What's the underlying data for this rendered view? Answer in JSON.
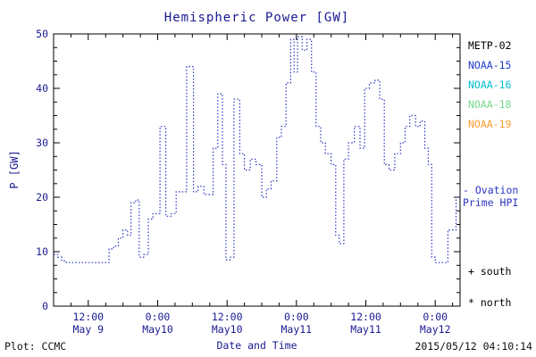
{
  "title": "Hemispheric Power [GW]",
  "footer": {
    "plot_credit": "Plot: CCMC",
    "timestamp": "2015/05/12 04:10:14"
  },
  "legend": {
    "satellites": [
      {
        "label": "METP-02",
        "color": "#000000"
      },
      {
        "label": "NOAA-15",
        "color": "#1f3bd0"
      },
      {
        "label": "NOAA-16",
        "color": "#00bcd0"
      },
      {
        "label": "NOAA-18",
        "color": "#74d98c"
      },
      {
        "label": "NOAA-19",
        "color": "#ff9d33"
      }
    ],
    "model_line1": "- Ovation",
    "model_line2": "Prime HPI",
    "south_label": "+ south",
    "north_label": "* north"
  },
  "chart_data": {
    "type": "line",
    "style": "dotted-step",
    "title": "Hemispheric Power [GW]",
    "xlabel": "Date and Time",
    "ylabel": "P [GW]",
    "ylim": [
      0,
      50
    ],
    "yticks": [
      0,
      10,
      20,
      30,
      40,
      50
    ],
    "xlim_hours": [
      6,
      76.3
    ],
    "xticks": [
      {
        "hour": 12,
        "time": "12:00",
        "date": "May 9"
      },
      {
        "hour": 24,
        "time": "0:00",
        "date": "May10"
      },
      {
        "hour": 36,
        "time": "12:00",
        "date": "May10"
      },
      {
        "hour": 48,
        "time": "0:00",
        "date": "May11"
      },
      {
        "hour": 60,
        "time": "12:00",
        "date": "May11"
      },
      {
        "hour": 72,
        "time": "0:00",
        "date": "May12"
      }
    ],
    "line_color": "#2a35c0",
    "series": [
      {
        "name": "Ovation Prime Hemispheric Power Index",
        "points": [
          [
            6.0,
            9.5
          ],
          [
            6.7,
            9.0
          ],
          [
            7.4,
            8.3
          ],
          [
            8.2,
            8.0
          ],
          [
            12.0,
            8.0
          ],
          [
            15.6,
            10.5
          ],
          [
            16.4,
            11.0
          ],
          [
            17.2,
            12.5
          ],
          [
            18.0,
            14.0
          ],
          [
            18.8,
            13.0
          ],
          [
            19.4,
            19.0
          ],
          [
            20.2,
            19.5
          ],
          [
            20.8,
            9.0
          ],
          [
            21.6,
            9.5
          ],
          [
            22.4,
            16.0
          ],
          [
            23.2,
            17.0
          ],
          [
            24.4,
            33.0
          ],
          [
            25.4,
            16.5
          ],
          [
            26.4,
            17.0
          ],
          [
            27.2,
            21.0
          ],
          [
            29.0,
            44.0
          ],
          [
            30.2,
            21.0
          ],
          [
            31.0,
            22.0
          ],
          [
            32.0,
            20.5
          ],
          [
            33.6,
            29.0
          ],
          [
            34.4,
            39.0
          ],
          [
            35.2,
            26.0
          ],
          [
            35.8,
            8.5
          ],
          [
            36.6,
            9.0
          ],
          [
            37.2,
            38.0
          ],
          [
            38.2,
            28.0
          ],
          [
            39.0,
            25.0
          ],
          [
            40.0,
            27.0
          ],
          [
            41.0,
            26.0
          ],
          [
            42.0,
            20.0
          ],
          [
            42.8,
            21.5
          ],
          [
            43.6,
            23.0
          ],
          [
            44.6,
            31.0
          ],
          [
            45.4,
            33.0
          ],
          [
            46.2,
            41.0
          ],
          [
            47.0,
            49.0
          ],
          [
            47.6,
            43.0
          ],
          [
            48.2,
            49.5
          ],
          [
            49.0,
            47.0
          ],
          [
            49.8,
            49.0
          ],
          [
            50.6,
            43.0
          ],
          [
            51.4,
            33.0
          ],
          [
            52.2,
            30.0
          ],
          [
            53.0,
            28.0
          ],
          [
            54.0,
            26.0
          ],
          [
            54.8,
            13.0
          ],
          [
            55.4,
            11.5
          ],
          [
            56.2,
            27.0
          ],
          [
            57.0,
            30.0
          ],
          [
            58.0,
            33.0
          ],
          [
            59.0,
            29.0
          ],
          [
            59.8,
            40.0
          ],
          [
            60.6,
            41.0
          ],
          [
            61.6,
            41.5
          ],
          [
            62.4,
            38.0
          ],
          [
            63.2,
            26.0
          ],
          [
            64.0,
            25.0
          ],
          [
            65.0,
            28.0
          ],
          [
            66.0,
            30.0
          ],
          [
            66.8,
            33.0
          ],
          [
            67.6,
            35.0
          ],
          [
            68.6,
            33.0
          ],
          [
            69.4,
            34.0
          ],
          [
            70.2,
            29.0
          ],
          [
            70.8,
            26.0
          ],
          [
            71.4,
            9.0
          ],
          [
            72.0,
            8.0
          ],
          [
            73.6,
            8.0
          ],
          [
            74.2,
            14.0
          ],
          [
            75.2,
            14.0
          ],
          [
            75.6,
            20.0
          ]
        ]
      }
    ]
  }
}
